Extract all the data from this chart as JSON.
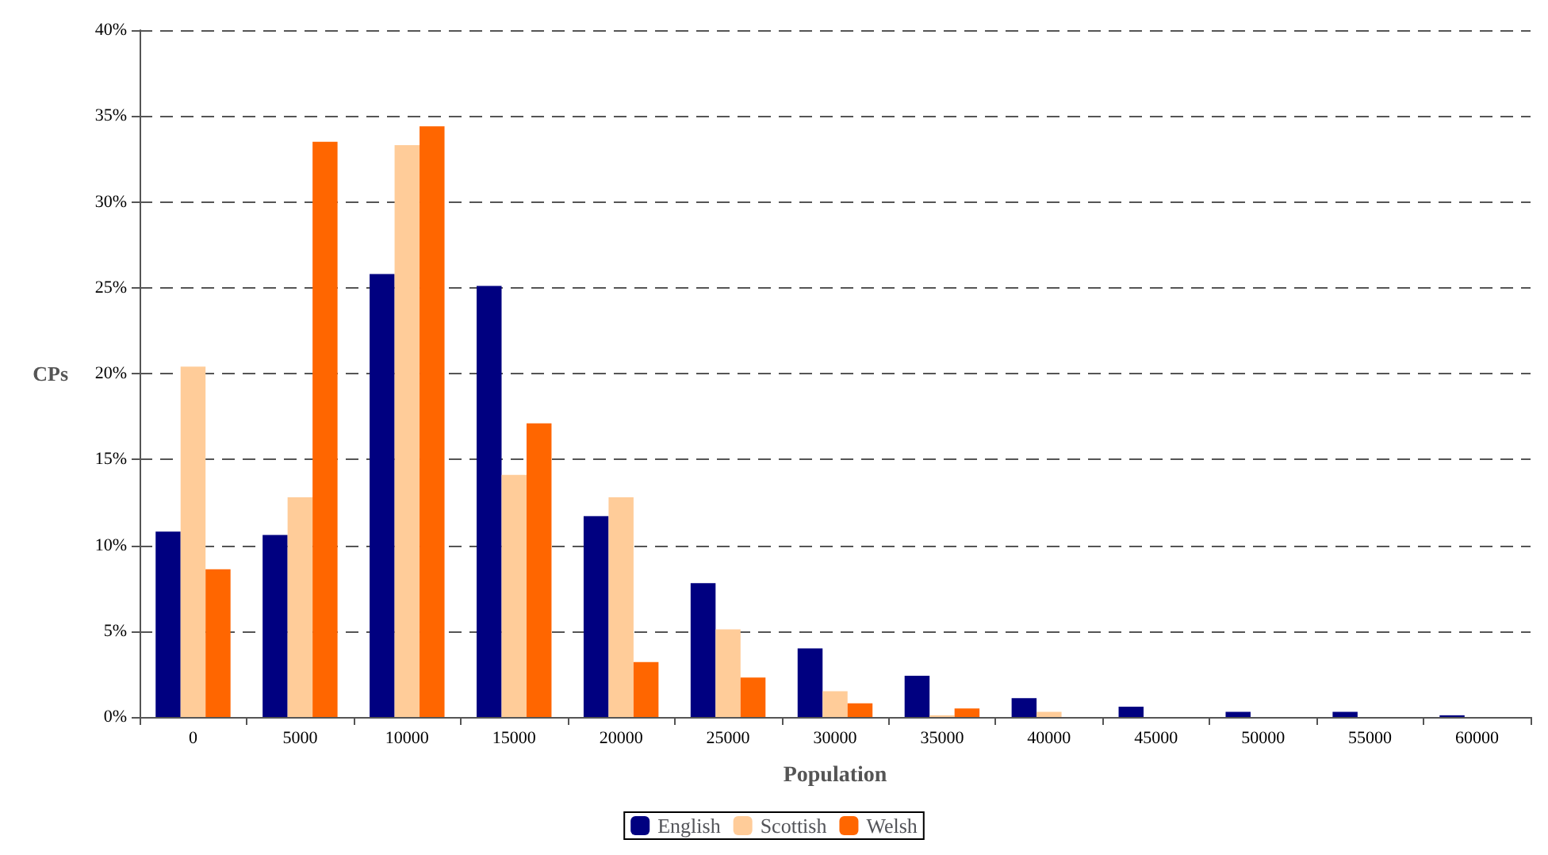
{
  "chart_data": {
    "type": "bar",
    "xlabel": "Population",
    "ylabel": "CPs",
    "categories": [
      "0",
      "5000",
      "10000",
      "15000",
      "20000",
      "25000",
      "30000",
      "35000",
      "40000",
      "45000",
      "50000",
      "55000",
      "60000"
    ],
    "series": [
      {
        "name": "English",
        "color": "#000080",
        "values": [
          10.8,
          10.6,
          25.8,
          25.1,
          11.7,
          7.8,
          4.0,
          2.4,
          1.1,
          0.6,
          0.3,
          0.3,
          0.1
        ]
      },
      {
        "name": "Scottish",
        "color": "#ffcc99",
        "values": [
          20.4,
          12.8,
          33.3,
          14.1,
          12.8,
          5.1,
          1.5,
          0.1,
          0.3,
          0,
          0,
          0,
          0
        ]
      },
      {
        "name": "Welsh",
        "color": "#ff6600",
        "values": [
          8.6,
          33.5,
          34.4,
          17.1,
          3.2,
          2.3,
          0.8,
          0.5,
          0,
          0,
          0,
          0,
          0
        ]
      }
    ],
    "ylim": [
      0,
      40
    ],
    "yticks": [
      {
        "value": 0,
        "label": "0%"
      },
      {
        "value": 5,
        "label": "5%"
      },
      {
        "value": 10,
        "label": "10%"
      },
      {
        "value": 15,
        "label": "15%"
      },
      {
        "value": 20,
        "label": "20%"
      },
      {
        "value": 25,
        "label": "25%"
      },
      {
        "value": 30,
        "label": "30%"
      },
      {
        "value": 35,
        "label": "35%"
      },
      {
        "value": 40,
        "label": "40%"
      }
    ],
    "grid": "y",
    "legend": "bottom"
  }
}
